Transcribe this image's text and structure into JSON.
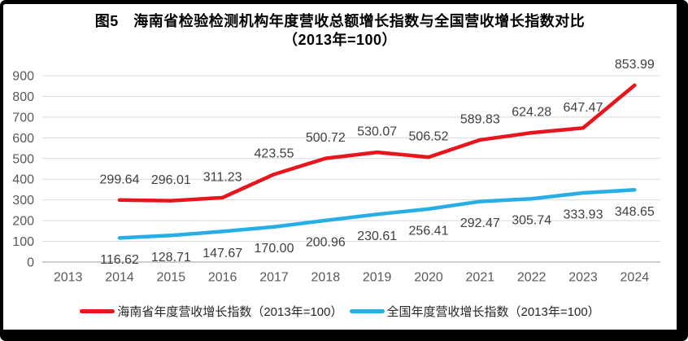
{
  "title": {
    "line1": "图5　海南省检验检测机构年度营收总额增长指数与全国营收增长指数对比",
    "line2": "（2013年=100）"
  },
  "chart_data": {
    "type": "line",
    "title": "图5 海南省检验检测机构年度营收总额增长指数与全国营收增长指数对比（2013年=100）",
    "x_categories": [
      "2013",
      "2014",
      "2015",
      "2016",
      "2017",
      "2018",
      "2019",
      "2020",
      "2021",
      "2022",
      "2023",
      "2024"
    ],
    "ylim": [
      0,
      900
    ],
    "y_ticks": [
      0,
      100,
      200,
      300,
      400,
      500,
      600,
      700,
      800,
      900
    ],
    "grid": true,
    "legend_position": "bottom",
    "series": [
      {
        "name": "海南省年度营收增长指数（2013年=100）",
        "color": "#e8141e",
        "start_index": 1,
        "values": [
          299.64,
          296.01,
          311.23,
          423.55,
          500.72,
          530.07,
          506.52,
          589.83,
          624.28,
          647.47,
          853.99
        ],
        "labels": [
          "299.64",
          "296.01",
          "311.23",
          "423.55",
          "500.72",
          "530.07",
          "506.52",
          "589.83",
          "624.28",
          "647.47",
          "853.99"
        ],
        "label_position": "above"
      },
      {
        "name": "全国年度营收增长指数（2013年=100）",
        "color": "#27aee4",
        "start_index": 1,
        "values": [
          116.62,
          128.71,
          147.67,
          170.0,
          200.96,
          230.61,
          256.41,
          292.47,
          305.74,
          333.93,
          348.65
        ],
        "labels": [
          "116.62",
          "128.71",
          "147.67",
          "170.00",
          "200.96",
          "230.61",
          "256.41",
          "292.47",
          "305.74",
          "333.93",
          "348.65"
        ],
        "label_position": "below"
      }
    ],
    "colors": {
      "grid": "#d9d9d9",
      "axis": "#bfbfbf",
      "tick_text": "#595959",
      "data_label_text": "#404040"
    }
  },
  "legend": {
    "items": [
      {
        "label": "海南省年度营收增长指数（2013年=100）"
      },
      {
        "label": "全国年度营收增长指数（2013年=100）"
      }
    ]
  }
}
